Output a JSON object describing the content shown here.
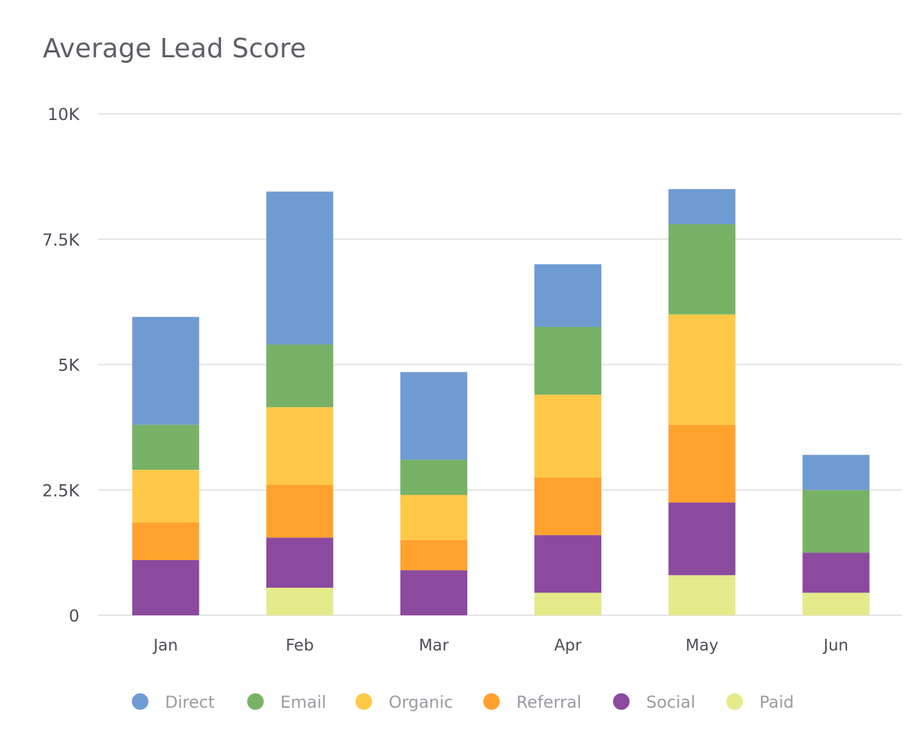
{
  "chart_data": {
    "type": "bar",
    "stacked": true,
    "title": "Average Lead Score",
    "xlabel": "",
    "ylabel": "",
    "ylim": [
      0,
      10000
    ],
    "yticks": [
      0,
      2500,
      5000,
      7500,
      10000
    ],
    "ytick_labels": [
      "0",
      "2.5K",
      "5K",
      "7.5K",
      "10K"
    ],
    "grid": true,
    "legend_position": "bottom",
    "categories": [
      "Jan",
      "Feb",
      "Mar",
      "Apr",
      "May",
      "Jun"
    ],
    "series": [
      {
        "name": "Paid",
        "color": "#e5ea8a",
        "values": [
          0,
          550,
          0,
          450,
          800,
          450
        ]
      },
      {
        "name": "Social",
        "color": "#8c4a9e",
        "values": [
          1100,
          1000,
          900,
          1150,
          1450,
          800
        ]
      },
      {
        "name": "Referral",
        "color": "#ffa22d",
        "values": [
          750,
          1050,
          600,
          1150,
          1550,
          0
        ]
      },
      {
        "name": "Organic",
        "color": "#ffc947",
        "values": [
          1050,
          1550,
          900,
          1650,
          2200,
          0
        ]
      },
      {
        "name": "Email",
        "color": "#77b266",
        "values": [
          900,
          1250,
          700,
          1350,
          1800,
          1250
        ]
      },
      {
        "name": "Direct",
        "color": "#6f9bd3",
        "values": [
          2150,
          3050,
          1750,
          1250,
          700,
          700
        ]
      }
    ],
    "legend_order": [
      "Direct",
      "Email",
      "Organic",
      "Referral",
      "Social",
      "Paid"
    ]
  }
}
